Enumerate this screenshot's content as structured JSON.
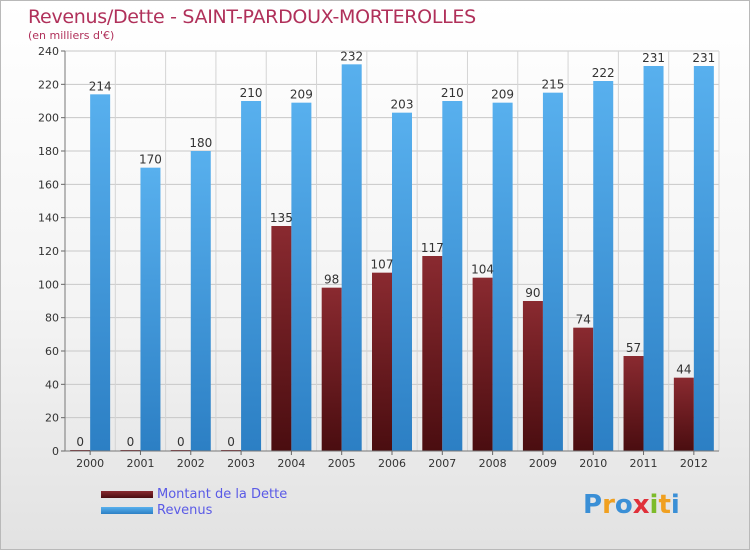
{
  "header": {
    "title": "Revenus/Dette - SAINT-PARDOUX-MORTEROLLES",
    "subtitle": "(en milliers d'€)"
  },
  "colors": {
    "title": "#b0305a",
    "debt": "#7a1f24",
    "debt_dark": "#4a0d10",
    "revenue": "#4aa3e6",
    "revenue_dark": "#2c7fc4",
    "legend_text": "#5a5ae6"
  },
  "chart_data": {
    "type": "bar",
    "categories": [
      "2000",
      "2001",
      "2002",
      "2003",
      "2004",
      "2005",
      "2006",
      "2007",
      "2008",
      "2009",
      "2010",
      "2011",
      "2012"
    ],
    "series": [
      {
        "name": "Montant de la Dette",
        "values": [
          0,
          0,
          0,
          0,
          135,
          98,
          107,
          117,
          104,
          90,
          74,
          57,
          44
        ]
      },
      {
        "name": "Revenus",
        "values": [
          214,
          170,
          180,
          210,
          209,
          232,
          203,
          210,
          209,
          215,
          222,
          231,
          231
        ]
      }
    ],
    "ylim": [
      0,
      240
    ],
    "yticks": [
      0,
      20,
      40,
      60,
      80,
      100,
      120,
      140,
      160,
      180,
      200,
      220,
      240
    ],
    "grid": true,
    "legend": "bottom-left"
  },
  "legend": {
    "items": [
      {
        "label": "Montant de la Dette",
        "icon": "dark-red-bar-swatch"
      },
      {
        "label": "Revenus",
        "icon": "blue-bar-swatch"
      }
    ]
  },
  "logo": {
    "letters": [
      "P",
      "r",
      "o",
      "x",
      "i",
      "t",
      "i"
    ],
    "colors": [
      "#3a8fd6",
      "#f0a020",
      "#3a8fd6",
      "#e0303a",
      "#7dbb2a",
      "#f0a020",
      "#3a8fd6"
    ]
  }
}
